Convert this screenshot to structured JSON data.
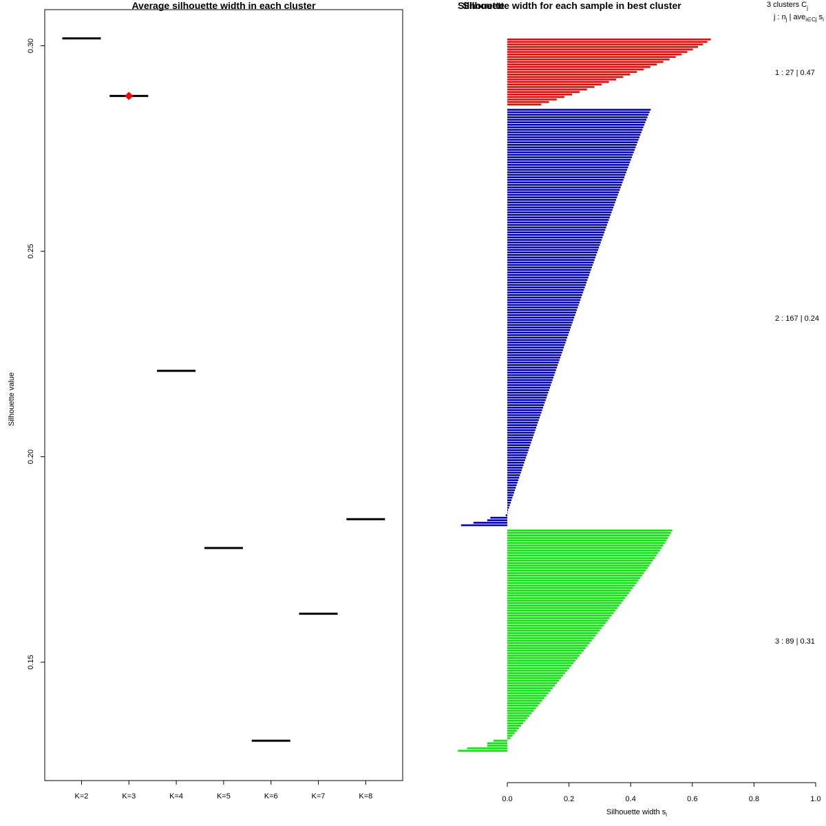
{
  "chart_data": [
    {
      "type": "scatter",
      "title": "Average silhouette width in each cluster",
      "xlabel": "",
      "ylabel": "Silhouette value",
      "ylim": [
        0.1212,
        0.3088
      ],
      "yticks": [
        0.15,
        0.2,
        0.25,
        0.3
      ],
      "ytick_labels": [
        "0.15",
        "0.20",
        "0.25",
        "0.30"
      ],
      "categories": [
        "K=2",
        "K=3",
        "K=4",
        "K=5",
        "K=6",
        "K=7",
        "K=8"
      ],
      "values": [
        0.3018,
        0.2878,
        0.2209,
        0.1778,
        0.1309,
        0.1618,
        0.1848
      ],
      "best": {
        "category": "K=3",
        "value": 0.2878,
        "color": "#ff0000"
      },
      "segment_color": "#000000"
    },
    {
      "type": "bar",
      "orientation": "horizontal",
      "title": "Silhouette width for each sample in best cluster",
      "xlabel": "Silhouette width s",
      "xlabel_sub": "i",
      "xlim": [
        0,
        1
      ],
      "xticks": [
        0,
        0.2,
        0.4,
        0.6,
        0.8,
        1.0
      ],
      "xtick_labels": [
        "0.0",
        "0.2",
        "0.4",
        "0.6",
        "0.8",
        "1.0"
      ],
      "bar_title": "Silhouette",
      "header": {
        "line1": "3  clusters  C",
        "line1_sub": "j",
        "line2_a": "j :  n",
        "line2_a_sub": "j",
        "line2_b": " | ave",
        "line2_b_sub": "i∈Cj",
        "line2_c": "  s",
        "line2_c_sub": "i"
      },
      "clusters": [
        {
          "id": 1,
          "n": 27,
          "avg": 0.47,
          "label": "1 :  27  |  0.47",
          "color": "#ff0000",
          "max": 0.66,
          "min": 0.11,
          "shape": 1.2,
          "tail": []
        },
        {
          "id": 2,
          "n": 167,
          "avg": 0.24,
          "label": "2 :  167  |  0.24",
          "color": "#0000cc",
          "max": 0.465,
          "min": 0.0,
          "shape": 0.95,
          "tail": [
            -0.005,
            -0.055,
            -0.065,
            -0.11,
            -0.15
          ]
        },
        {
          "id": 3,
          "n": 89,
          "avg": 0.31,
          "label": "3 :  89  |  0.31",
          "color": "#00ee00",
          "max": 0.535,
          "min": 0.01,
          "shape": 1.1,
          "tail": [
            -0.045,
            -0.065,
            -0.065,
            -0.13,
            -0.16
          ]
        }
      ]
    }
  ]
}
